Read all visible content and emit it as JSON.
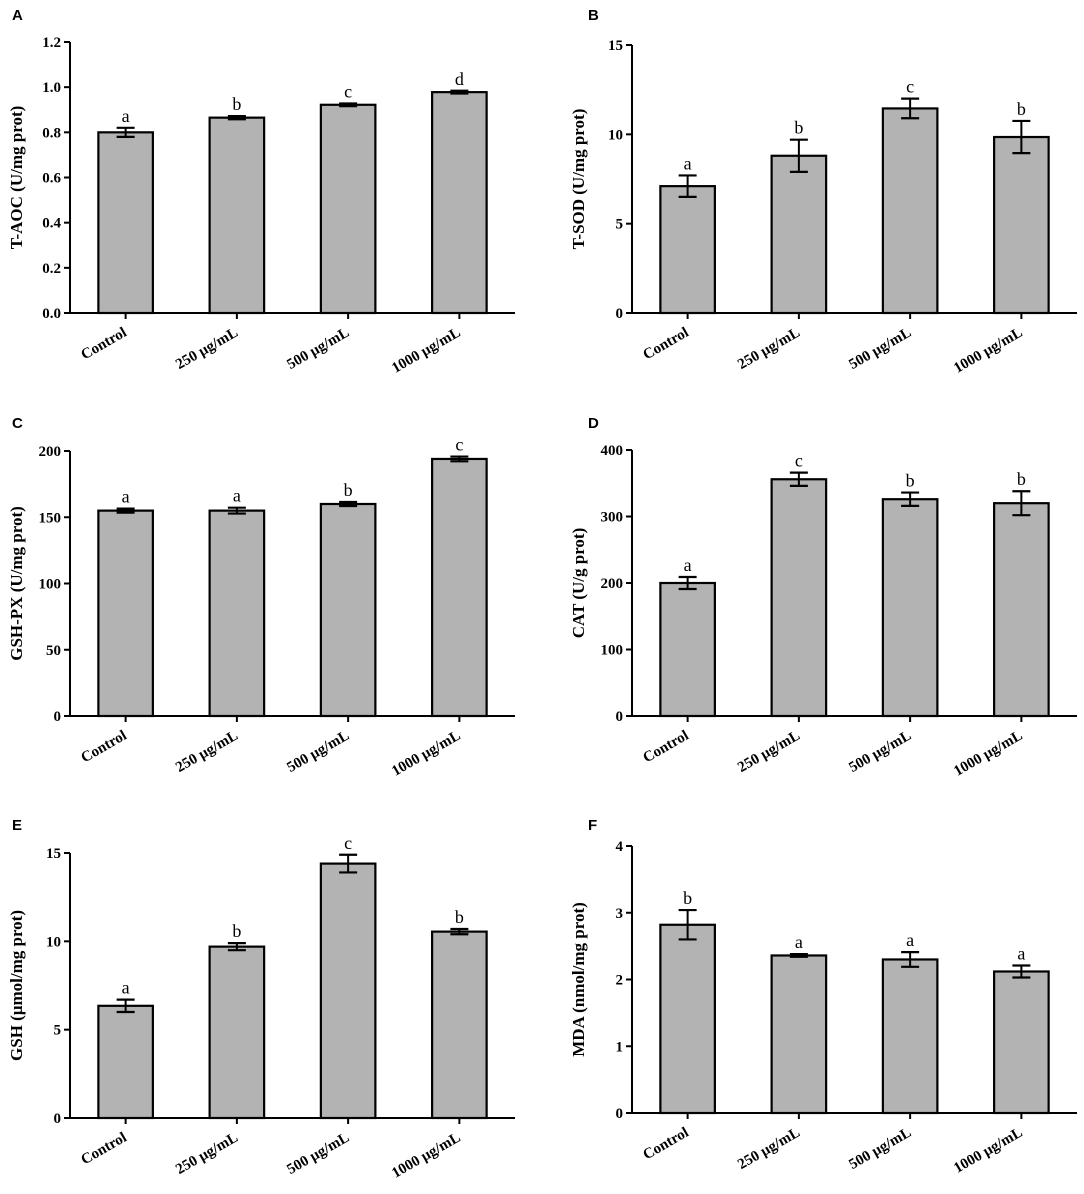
{
  "colors": {
    "bar_fill": "#b3b3b3",
    "bar_stroke": "#000000",
    "axis": "#000000"
  },
  "chart_data": [
    {
      "panel": "A",
      "type": "bar",
      "categories": [
        "Control",
        "250 μg/mL",
        "500 μg/mL",
        "1000 μg/mL"
      ],
      "values": [
        0.8,
        0.865,
        0.922,
        0.978
      ],
      "errors": [
        0.02,
        0.007,
        0.006,
        0.006
      ],
      "sig": [
        "a",
        "b",
        "c",
        "d"
      ],
      "ylabel": "T-AOC (U/mg prot)",
      "ylim": [
        0,
        1.2
      ],
      "yticks": [
        "0.0",
        "0.2",
        "0.4",
        "0.6",
        "0.8",
        "1.0",
        "1.2"
      ]
    },
    {
      "panel": "B",
      "type": "bar",
      "categories": [
        "Control",
        "250 μg/mL",
        "500 μg/mL",
        "1000 μg/mL"
      ],
      "values": [
        7.1,
        8.8,
        11.45,
        9.85
      ],
      "errors": [
        0.6,
        0.9,
        0.55,
        0.9
      ],
      "sig": [
        "a",
        "b",
        "c",
        "b"
      ],
      "ylabel": "T-SOD (U/mg prot)",
      "ylim": [
        0,
        15
      ],
      "yticks": [
        "0",
        "5",
        "10",
        "15"
      ]
    },
    {
      "panel": "C",
      "type": "bar",
      "categories": [
        "Control",
        "250 μg/mL",
        "500 μg/mL",
        "1000 μg/mL"
      ],
      "values": [
        155,
        155,
        160,
        194
      ],
      "errors": [
        1.5,
        2.2,
        1.5,
        1.8
      ],
      "sig": [
        "a",
        "a",
        "b",
        "c"
      ],
      "ylabel": "GSH-PX (U/mg prot)",
      "ylim": [
        0,
        200
      ],
      "yticks": [
        "0",
        "50",
        "100",
        "150",
        "200"
      ]
    },
    {
      "panel": "D",
      "type": "bar",
      "categories": [
        "Control",
        "250 μg/mL",
        "500 μg/mL",
        "1000 μg/mL"
      ],
      "values": [
        200,
        356,
        326,
        320
      ],
      "errors": [
        9,
        10,
        10,
        18
      ],
      "sig": [
        "a",
        "c",
        "b",
        "b"
      ],
      "ylabel": "CAT (U/g prot)",
      "ylim": [
        0,
        400
      ],
      "yticks": [
        "0",
        "100",
        "200",
        "300",
        "400"
      ]
    },
    {
      "panel": "E",
      "type": "bar",
      "categories": [
        "Control",
        "250 μg/mL",
        "500 μg/mL",
        "1000 μg/mL"
      ],
      "values": [
        6.35,
        9.7,
        14.4,
        10.55
      ],
      "errors": [
        0.35,
        0.2,
        0.5,
        0.15
      ],
      "sig": [
        "a",
        "b",
        "c",
        "b"
      ],
      "ylabel": "GSH (μmol/mg prot)",
      "ylim": [
        0,
        15
      ],
      "yticks": [
        "0",
        "5",
        "10",
        "15"
      ]
    },
    {
      "panel": "F",
      "type": "bar",
      "categories": [
        "Control",
        "250 μg/mL",
        "500 μg/mL",
        "1000 μg/mL"
      ],
      "values": [
        2.82,
        2.36,
        2.3,
        2.12
      ],
      "errors": [
        0.22,
        0.02,
        0.11,
        0.09
      ],
      "sig": [
        "b",
        "a",
        "a",
        "a"
      ],
      "ylabel": "MDA (nmol/mg prot)",
      "ylim": [
        0,
        4
      ],
      "yticks": [
        "0",
        "1",
        "2",
        "3",
        "4"
      ]
    }
  ]
}
